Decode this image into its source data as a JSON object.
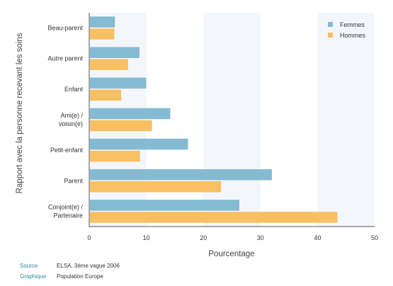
{
  "chart_data": {
    "type": "bar",
    "orientation": "horizontal",
    "title": "",
    "xlabel": "Pourcentage",
    "ylabel": "Rapport avec la personne recevant les soins",
    "xlim": [
      0,
      50
    ],
    "xticks": [
      0,
      10,
      20,
      30,
      40,
      50
    ],
    "categories": [
      [
        "Beau-parent"
      ],
      [
        "Autre parent"
      ],
      [
        "Enfant"
      ],
      [
        "Ami(e) /",
        "voisin(e)"
      ],
      [
        "Petit-enfant"
      ],
      [
        "Parent"
      ],
      [
        "Conjoint(e) /",
        "Partenaire"
      ]
    ],
    "series": [
      {
        "name": "Femmes",
        "color": "#85bad3",
        "values": [
          4.5,
          8.8,
          10.0,
          14.2,
          17.3,
          32.0,
          26.3
        ]
      },
      {
        "name": "Hommes",
        "color": "#f8c063",
        "values": [
          4.4,
          6.8,
          5.6,
          11.0,
          8.9,
          23.1,
          43.5
        ]
      }
    ],
    "legend_position": "top-right",
    "grid": "alternating vertical bands"
  },
  "footer": {
    "source_label": "Source",
    "source_value": "ELSA, 3ème vague 2006",
    "graphic_label": "Graphique",
    "graphic_value": "Population Europe"
  }
}
